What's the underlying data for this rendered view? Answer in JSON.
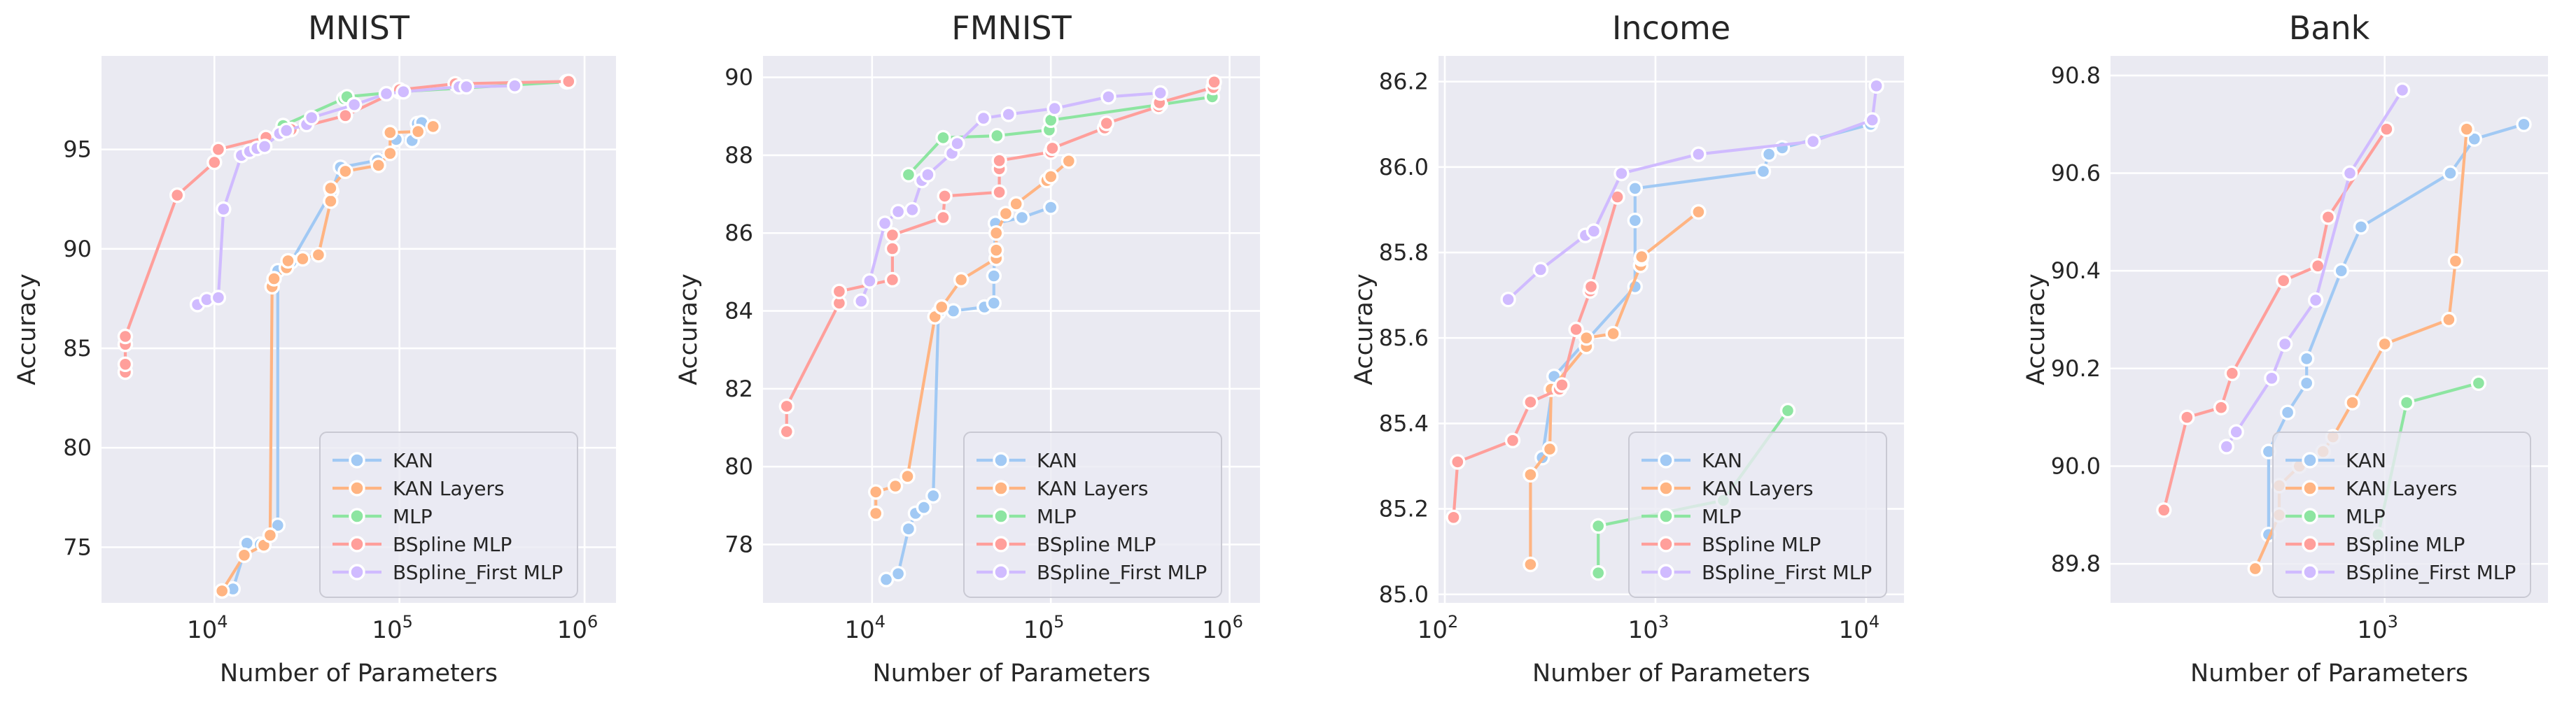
{
  "figure": {
    "background": "#ffffff",
    "axes_background": "#eaeaf2",
    "grid_color": "#ffffff",
    "text_color": "#262626",
    "title_color": "#141414",
    "xlabel": "Number of Parameters",
    "ylabel": "Accuracy"
  },
  "legend": {
    "labels": [
      "KAN",
      "KAN Layers",
      "MLP",
      "BSpline MLP",
      "BSpline_First MLP"
    ],
    "background": "rgba(234,234,242,0.8)",
    "border_color": "#c9c9d3"
  },
  "palette": {
    "KAN": "#a1c9f4",
    "KAN Layers": "#ffb482",
    "MLP": "#8de5a1",
    "BSpline MLP": "#ff9f9b",
    "BSpline_First MLP": "#d0bbff"
  },
  "chart_data": [
    {
      "type": "line",
      "title": "MNIST",
      "xlabel": "Number of Parameters",
      "ylabel": "Accuracy",
      "xscale": "log",
      "xlim_log": [
        3.39,
        6.17
      ],
      "ylim": [
        72.2,
        99.7
      ],
      "xticks_log": [
        4,
        5,
        6
      ],
      "yticks": [
        75,
        80,
        85,
        90,
        95
      ],
      "ytick_decimals": 0,
      "margin_left": 145,
      "legend_margin_right": 55,
      "grid": true,
      "legend_position": "lower right",
      "series": [
        {
          "name": "KAN",
          "points": [
            [
              12600,
              72.9
            ],
            [
              15000,
              75.2
            ],
            [
              17700,
              75.15
            ],
            [
              22000,
              76.1
            ],
            [
              22000,
              88.9
            ],
            [
              26000,
              89.35
            ],
            [
              43000,
              92.9
            ],
            [
              48000,
              94.1
            ],
            [
              76000,
              94.45
            ],
            [
              96000,
              95.5
            ],
            [
              117000,
              95.45
            ],
            [
              125000,
              96.3
            ],
            [
              132000,
              96.35
            ]
          ]
        },
        {
          "name": "KAN Layers",
          "points": [
            [
              11000,
              72.8
            ],
            [
              14500,
              74.6
            ],
            [
              18500,
              75.1
            ],
            [
              20000,
              75.6
            ],
            [
              20500,
              88.1
            ],
            [
              21000,
              88.5
            ],
            [
              24500,
              89.05
            ],
            [
              25000,
              89.4
            ],
            [
              30000,
              89.5
            ],
            [
              36500,
              89.7
            ],
            [
              42500,
              92.4
            ],
            [
              42500,
              93.05
            ],
            [
              51000,
              93.9
            ],
            [
              77000,
              94.2
            ],
            [
              89000,
              94.8
            ],
            [
              89000,
              95.85
            ],
            [
              126000,
              95.9
            ],
            [
              152000,
              96.15
            ]
          ]
        },
        {
          "name": "MLP",
          "points": [
            [
              23000,
              95.9
            ],
            [
              23500,
              96.2
            ],
            [
              50000,
              97.55
            ],
            [
              52000,
              97.65
            ],
            [
              100000,
              97.9
            ],
            [
              800000,
              98.4
            ]
          ]
        },
        {
          "name": "BSpline MLP",
          "points": [
            [
              3300,
              83.8
            ],
            [
              3300,
              84.2
            ],
            [
              3300,
              85.2
            ],
            [
              3300,
              85.6
            ],
            [
              6300,
              92.7
            ],
            [
              10000,
              94.35
            ],
            [
              10500,
              95.0
            ],
            [
              19000,
              95.6
            ],
            [
              26000,
              96.0
            ],
            [
              51000,
              96.7
            ],
            [
              100000,
              98.0
            ],
            [
              200000,
              98.3
            ],
            [
              820000,
              98.42
            ]
          ]
        },
        {
          "name": "BSpline_First MLP",
          "points": [
            [
              8100,
              87.2
            ],
            [
              9100,
              87.45
            ],
            [
              10500,
              87.55
            ],
            [
              11200,
              92.0
            ],
            [
              14000,
              94.7
            ],
            [
              15500,
              94.9
            ],
            [
              17000,
              95.05
            ],
            [
              18700,
              95.15
            ],
            [
              22500,
              95.8
            ],
            [
              24500,
              95.95
            ],
            [
              31500,
              96.25
            ],
            [
              33500,
              96.6
            ],
            [
              57000,
              97.25
            ],
            [
              85000,
              97.8
            ],
            [
              105000,
              97.9
            ],
            [
              210000,
              98.15
            ],
            [
              230000,
              98.15
            ],
            [
              420000,
              98.2
            ]
          ]
        }
      ]
    },
    {
      "type": "line",
      "title": "FMNIST",
      "xlabel": "Number of Parameters",
      "ylabel": "Accuracy",
      "xscale": "log",
      "xlim_log": [
        3.39,
        6.17
      ],
      "ylim": [
        76.5,
        90.55
      ],
      "xticks_log": [
        4,
        5,
        6
      ],
      "yticks": [
        78,
        80,
        82,
        84,
        86,
        88,
        90
      ],
      "ytick_decimals": 0,
      "margin_left": 170,
      "legend_margin_right": 55,
      "grid": true,
      "legend_position": "lower right",
      "series": [
        {
          "name": "KAN",
          "points": [
            [
              12000,
              77.1
            ],
            [
              14000,
              77.25
            ],
            [
              16000,
              78.4
            ],
            [
              17500,
              78.8
            ],
            [
              19500,
              78.95
            ],
            [
              22000,
              79.25
            ],
            [
              23500,
              83.95
            ],
            [
              28500,
              84.0
            ],
            [
              42500,
              84.1
            ],
            [
              48000,
              84.2
            ],
            [
              48000,
              84.9
            ],
            [
              49000,
              86.25
            ],
            [
              69000,
              86.4
            ],
            [
              100000,
              86.66
            ]
          ]
        },
        {
          "name": "KAN Layers",
          "points": [
            [
              10500,
              78.8
            ],
            [
              10500,
              79.35
            ],
            [
              13500,
              79.5
            ],
            [
              15800,
              79.75
            ],
            [
              22500,
              83.85
            ],
            [
              24500,
              84.1
            ],
            [
              31500,
              84.8
            ],
            [
              49500,
              85.35
            ],
            [
              49500,
              85.56
            ],
            [
              49500,
              86.0
            ],
            [
              56000,
              86.5
            ],
            [
              64000,
              86.75
            ],
            [
              95000,
              87.35
            ],
            [
              100000,
              87.45
            ],
            [
              126000,
              87.85
            ]
          ]
        },
        {
          "name": "MLP",
          "points": [
            [
              16000,
              87.5
            ],
            [
              25000,
              88.45
            ],
            [
              50000,
              88.5
            ],
            [
              98000,
              88.65
            ],
            [
              100000,
              88.9
            ],
            [
              410000,
              89.3
            ],
            [
              800000,
              89.5
            ]
          ]
        },
        {
          "name": "BSpline MLP",
          "points": [
            [
              3330,
              80.9
            ],
            [
              3330,
              81.55
            ],
            [
              6550,
              84.2
            ],
            [
              6550,
              84.5
            ],
            [
              13000,
              84.8
            ],
            [
              13000,
              85.6
            ],
            [
              13000,
              85.95
            ],
            [
              25000,
              86.4
            ],
            [
              25500,
              86.95
            ],
            [
              51500,
              87.05
            ],
            [
              51500,
              87.65
            ],
            [
              51500,
              87.86
            ],
            [
              100000,
              88.08
            ],
            [
              102000,
              88.18
            ],
            [
              200000,
              88.7
            ],
            [
              205000,
              88.82
            ],
            [
              400000,
              89.25
            ],
            [
              405000,
              89.35
            ],
            [
              810000,
              89.74
            ],
            [
              820000,
              89.88
            ]
          ]
        },
        {
          "name": "BSpline_First MLP",
          "points": [
            [
              8700,
              84.25
            ],
            [
              9700,
              84.77
            ],
            [
              11800,
              86.25
            ],
            [
              14000,
              86.55
            ],
            [
              16800,
              86.6
            ],
            [
              19000,
              87.35
            ],
            [
              20500,
              87.5
            ],
            [
              28000,
              88.05
            ],
            [
              30000,
              88.3
            ],
            [
              42000,
              88.95
            ],
            [
              58000,
              89.05
            ],
            [
              105000,
              89.2
            ],
            [
              210000,
              89.5
            ],
            [
              410000,
              89.6
            ]
          ]
        }
      ]
    },
    {
      "type": "line",
      "title": "Income",
      "xlabel": "Number of Parameters",
      "ylabel": "Accuracy",
      "xscale": "log",
      "xlim_log": [
        1.97,
        4.18
      ],
      "ylim": [
        84.98,
        86.26
      ],
      "xticks_log": [
        2,
        3,
        4
      ],
      "yticks": [
        85.0,
        85.2,
        85.4,
        85.6,
        85.8,
        86.0,
        86.2
      ],
      "ytick_decimals": 1,
      "margin_left": 215,
      "legend_margin_right": 25,
      "grid": true,
      "legend_position": "lower right",
      "series": [
        {
          "name": "KAN",
          "points": [
            [
              290,
              85.32
            ],
            [
              330,
              85.51
            ],
            [
              800,
              85.72
            ],
            [
              800,
              85.875
            ],
            [
              800,
              85.95
            ],
            [
              3250,
              85.99
            ],
            [
              3460,
              86.03
            ],
            [
              4000,
              86.045
            ],
            [
              10500,
              86.1
            ]
          ]
        },
        {
          "name": "KAN Layers",
          "points": [
            [
              255,
              85.07
            ],
            [
              255,
              85.28
            ],
            [
              315,
              85.34
            ],
            [
              320,
              85.48
            ],
            [
              470,
              85.58
            ],
            [
              470,
              85.6
            ],
            [
              630,
              85.61
            ],
            [
              850,
              85.77
            ],
            [
              855,
              85.785
            ],
            [
              860,
              85.79
            ],
            [
              1600,
              85.895
            ]
          ]
        },
        {
          "name": "MLP",
          "points": [
            [
              535,
              85.05
            ],
            [
              535,
              85.16
            ],
            [
              2100,
              85.22
            ],
            [
              4250,
              85.43
            ]
          ]
        },
        {
          "name": "BSpline MLP",
          "points": [
            [
              110,
              85.18
            ],
            [
              115,
              85.31
            ],
            [
              210,
              85.36
            ],
            [
              255,
              85.45
            ],
            [
              350,
              85.48
            ],
            [
              360,
              85.49
            ],
            [
              420,
              85.62
            ],
            [
              490,
              85.71
            ],
            [
              495,
              85.72
            ],
            [
              660,
              85.93
            ]
          ]
        },
        {
          "name": "BSpline_First MLP",
          "points": [
            [
              200,
              85.69
            ],
            [
              285,
              85.76
            ],
            [
              465,
              85.84
            ],
            [
              510,
              85.85
            ],
            [
              690,
              85.985
            ],
            [
              1600,
              86.03
            ],
            [
              5600,
              86.06
            ],
            [
              10700,
              86.11
            ],
            [
              11200,
              86.19
            ]
          ]
        }
      ]
    },
    {
      "type": "line",
      "title": "Bank",
      "xlabel": "Number of Parameters",
      "ylabel": "Accuracy",
      "xscale": "log",
      "xlim_log": [
        2.06,
        3.56
      ],
      "ylim": [
        89.72,
        90.84
      ],
      "xticks_log": [
        3
      ],
      "yticks": [
        89.8,
        90.0,
        90.2,
        90.4,
        90.6,
        90.8
      ],
      "ytick_decimals": 1,
      "margin_left": 255,
      "legend_margin_right": 25,
      "grid": true,
      "legend_position": "lower right",
      "series": [
        {
          "name": "KAN",
          "points": [
            [
              400,
              89.86
            ],
            [
              400,
              90.03
            ],
            [
              465,
              90.11
            ],
            [
              540,
              90.17
            ],
            [
              540,
              90.22
            ],
            [
              710,
              90.4
            ],
            [
              830,
              90.49
            ],
            [
              1680,
              90.6
            ],
            [
              2030,
              90.67
            ],
            [
              3000,
              90.7
            ]
          ]
        },
        {
          "name": "KAN Layers",
          "points": [
            [
              360,
              89.79
            ],
            [
              435,
              89.9
            ],
            [
              435,
              89.96
            ],
            [
              510,
              90.0
            ],
            [
              615,
              90.03
            ],
            [
              665,
              90.06
            ],
            [
              775,
              90.13
            ],
            [
              1000,
              90.25
            ],
            [
              1660,
              90.3
            ],
            [
              1750,
              90.42
            ],
            [
              1910,
              90.69
            ]
          ]
        },
        {
          "name": "MLP",
          "points": [
            [
              950,
              89.86
            ],
            [
              1190,
              90.13
            ],
            [
              2100,
              90.17
            ]
          ]
        },
        {
          "name": "BSpline MLP",
          "points": [
            [
              175,
              89.91
            ],
            [
              210,
              90.1
            ],
            [
              275,
              90.12
            ],
            [
              300,
              90.19
            ],
            [
              450,
              90.38
            ],
            [
              590,
              90.41
            ],
            [
              640,
              90.51
            ],
            [
              1015,
              90.69
            ]
          ]
        },
        {
          "name": "BSpline_First MLP",
          "points": [
            [
              287,
              90.04
            ],
            [
              310,
              90.07
            ],
            [
              410,
              90.18
            ],
            [
              455,
              90.25
            ],
            [
              580,
              90.34
            ],
            [
              760,
              90.6
            ],
            [
              1150,
              90.77
            ]
          ]
        }
      ]
    }
  ]
}
